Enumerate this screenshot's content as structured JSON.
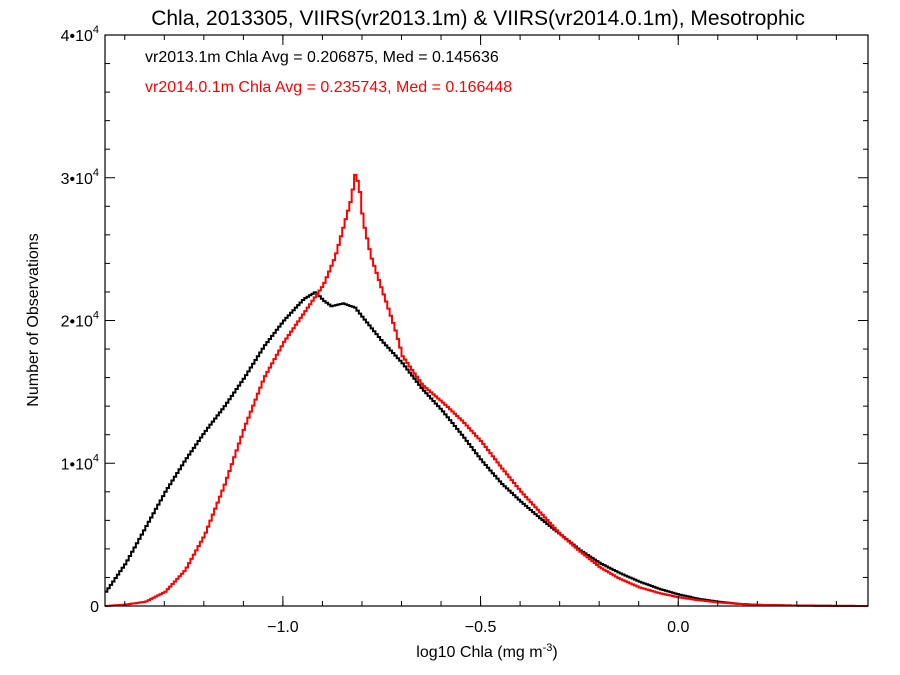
{
  "chart_data": {
    "type": "line",
    "step": true,
    "title": "Chla, 2013305, VIIRS(vr2013.1m) & VIIRS(vr2014.0.1m), Mesotrophic",
    "xlabel": "log10 Chla (mg m",
    "xlabel_sup": "-3",
    "xlabel_tail": ")",
    "ylabel": "Number of Observations",
    "xlim": [
      -1.45,
      0.48
    ],
    "ylim": [
      0,
      40000
    ],
    "xticks": [
      -1.0,
      -0.5,
      0.0
    ],
    "xtick_labels": [
      "−1.0",
      "−0.5",
      "0.0"
    ],
    "yticks": [
      0,
      10000,
      20000,
      30000,
      40000
    ],
    "ytick_labels": [
      {
        "base": "0",
        "sup": ""
      },
      {
        "base": "1•10",
        "sup": "4"
      },
      {
        "base": "2•10",
        "sup": "4"
      },
      {
        "base": "3•10",
        "sup": "4"
      },
      {
        "base": "4•10",
        "sup": "4"
      }
    ],
    "grid": false,
    "annotations": [
      {
        "text": "vr2013.1m Chla Avg = 0.206875, Med = 0.145636",
        "color": "#000000"
      },
      {
        "text": "vr2014.0.1m Chla Avg = 0.235743, Med = 0.166448",
        "color": "#ff0000"
      }
    ],
    "series": [
      {
        "color": "#000000",
        "x": [
          -1.45,
          -1.4,
          -1.35,
          -1.3,
          -1.25,
          -1.2,
          -1.15,
          -1.1,
          -1.05,
          -1.0,
          -0.95,
          -0.92,
          -0.9,
          -0.88,
          -0.85,
          -0.82,
          -0.8,
          -0.75,
          -0.7,
          -0.65,
          -0.6,
          -0.55,
          -0.5,
          -0.45,
          -0.4,
          -0.35,
          -0.3,
          -0.25,
          -0.2,
          -0.15,
          -0.1,
          -0.05,
          0.0,
          0.05,
          0.1,
          0.15,
          0.2,
          0.3,
          0.4,
          0.48
        ],
        "y": [
          1000,
          3000,
          5500,
          8000,
          10200,
          12200,
          14000,
          16000,
          18200,
          20000,
          21500,
          22000,
          21400,
          21000,
          21200,
          20900,
          20200,
          18500,
          17000,
          15200,
          13700,
          12000,
          10200,
          8600,
          7300,
          6100,
          5000,
          3900,
          3000,
          2300,
          1700,
          1200,
          800,
          500,
          300,
          150,
          80,
          30,
          10,
          0
        ]
      },
      {
        "color": "#ff0000",
        "x": [
          -1.45,
          -1.4,
          -1.35,
          -1.3,
          -1.25,
          -1.2,
          -1.15,
          -1.1,
          -1.05,
          -1.0,
          -0.95,
          -0.9,
          -0.87,
          -0.85,
          -0.83,
          -0.82,
          -0.81,
          -0.8,
          -0.78,
          -0.75,
          -0.72,
          -0.7,
          -0.65,
          -0.6,
          -0.55,
          -0.5,
          -0.45,
          -0.4,
          -0.35,
          -0.3,
          -0.25,
          -0.2,
          -0.15,
          -0.1,
          -0.05,
          0.0,
          0.05,
          0.1,
          0.15,
          0.2,
          0.3,
          0.4,
          0.48
        ],
        "y": [
          0,
          100,
          300,
          1000,
          2500,
          5000,
          8500,
          12500,
          16000,
          18500,
          20500,
          22500,
          24500,
          26500,
          28500,
          30200,
          29500,
          27000,
          24500,
          22000,
          19500,
          17500,
          15500,
          14300,
          13000,
          11500,
          9700,
          8000,
          6500,
          5000,
          3800,
          2700,
          1900,
          1300,
          900,
          600,
          400,
          250,
          150,
          80,
          30,
          10,
          0
        ]
      }
    ]
  }
}
